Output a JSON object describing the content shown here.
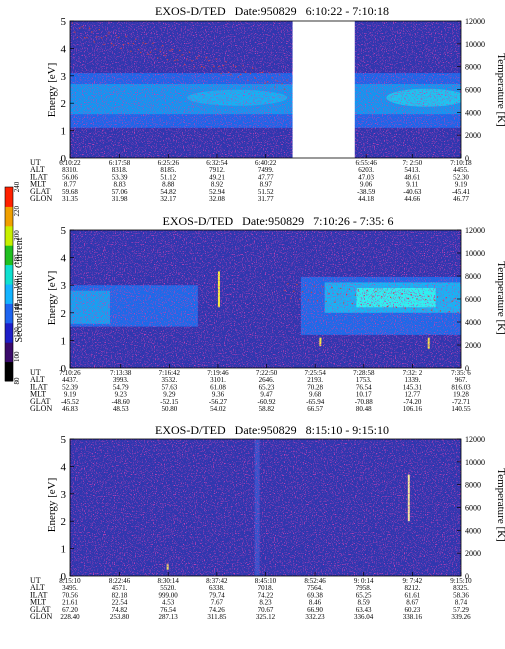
{
  "colorbar": {
    "label": "Second Harmonic Current",
    "ticks": [
      "80",
      "100",
      "120",
      "140",
      "160",
      "180",
      "200",
      "220",
      "240"
    ],
    "colors": [
      "#000000",
      "#3a0a6a",
      "#1e1ec8",
      "#1e64f0",
      "#14b4ff",
      "#10e0d0",
      "#20c020",
      "#c8f000",
      "#f0a000",
      "#ff2000"
    ]
  },
  "ephemeris_labels": [
    "UT",
    "ALT",
    "ILAT",
    "MLT",
    "GLAT",
    "GLON"
  ],
  "chart_data": [
    {
      "type": "heatmap",
      "title": "EXOS-D/TED   Date:950829   6:10:22 - 7:10:18",
      "ylabel": "Energy [eV]",
      "y2label": "Temperature [K]",
      "ylim": [
        0,
        5
      ],
      "y2lim": [
        0,
        12000
      ],
      "yticks": [
        "0",
        "1",
        "2",
        "3",
        "4",
        "5"
      ],
      "y2ticks": [
        "0",
        "2000",
        "4000",
        "6000",
        "8000",
        "10000",
        "12000"
      ],
      "data_gap": {
        "from": "6:44:30",
        "to": "6:54:00"
      },
      "ephemeris": [
        {
          "UT": "6:10:22",
          "ALT": "8310.",
          "ILAT": "56.06",
          "MLT": "8.77",
          "GLAT": "59.68",
          "GLON": "31.35"
        },
        {
          "UT": "6:17:58",
          "ALT": "8318.",
          "ILAT": "53.39",
          "MLT": "8.83",
          "GLAT": "57.06",
          "GLON": "31.98"
        },
        {
          "UT": "6:25:26",
          "ALT": "8185.",
          "ILAT": "51.12",
          "MLT": "8.88",
          "GLAT": "54.82",
          "GLON": "32.17"
        },
        {
          "UT": "6:32:54",
          "ALT": "7912.",
          "ILAT": "49.21",
          "MLT": "8.92",
          "GLAT": "52.94",
          "GLON": "32.08"
        },
        {
          "UT": "6:40:22",
          "ALT": "7499.",
          "ILAT": "47.77",
          "MLT": "8.97",
          "GLAT": "51.52",
          "GLON": "31.77"
        },
        {
          "UT": "6:55:46",
          "ALT": "6203.",
          "ILAT": "47.03",
          "MLT": "9.06",
          "GLAT": "-38.59",
          "GLON": "44.18"
        },
        {
          "UT": "7: 2:50",
          "ALT": "5413.",
          "ILAT": "48.61",
          "MLT": "9.11",
          "GLAT": "-40.63",
          "GLON": "44.66"
        },
        {
          "UT": "7:10:18",
          "ALT": "4455.",
          "ILAT": "52.30",
          "MLT": "9.19",
          "GLAT": "-45.41",
          "GLON": "46.77"
        }
      ]
    },
    {
      "type": "heatmap",
      "title": "EXOS-D/TED   Date:950829   7:10:26 - 7:35: 6",
      "ylabel": "Energy [eV]",
      "y2label": "Temperature [K]",
      "ylim": [
        0,
        5
      ],
      "y2lim": [
        0,
        12000
      ],
      "yticks": [
        "0",
        "1",
        "2",
        "3",
        "4",
        "5"
      ],
      "y2ticks": [
        "0",
        "2000",
        "4000",
        "6000",
        "8000",
        "10000",
        "12000"
      ],
      "ephemeris": [
        {
          "UT": "7:10:26",
          "ALT": "4437.",
          "ILAT": "52.39",
          "MLT": "9.19",
          "GLAT": "-45.52",
          "GLON": "46.83"
        },
        {
          "UT": "7:13:38",
          "ALT": "3993.",
          "ILAT": "54.79",
          "MLT": "9.23",
          "GLAT": "-48.60",
          "GLON": "48.53"
        },
        {
          "UT": "7:16:42",
          "ALT": "3532.",
          "ILAT": "57.63",
          "MLT": "9.29",
          "GLAT": "-52.15",
          "GLON": "50.80"
        },
        {
          "UT": "7:19:46",
          "ALT": "3101.",
          "ILAT": "61.08",
          "MLT": "9.36",
          "GLAT": "-56.27",
          "GLON": "54.02"
        },
        {
          "UT": "7:22:50",
          "ALT": "2646.",
          "ILAT": "65.23",
          "MLT": "9.47",
          "GLAT": "-60.92",
          "GLON": "58.82"
        },
        {
          "UT": "7:25:54",
          "ALT": "2193.",
          "ILAT": "70.28",
          "MLT": "9.68",
          "GLAT": "-65.94",
          "GLON": "66.57"
        },
        {
          "UT": "7:28:58",
          "ALT": "1753.",
          "ILAT": "76.54",
          "MLT": "10.17",
          "GLAT": "-70.88",
          "GLON": "80.48"
        },
        {
          "UT": "7:32: 2",
          "ALT": "1339.",
          "ILAT": "145.31",
          "MLT": "12.77",
          "GLAT": "-74.20",
          "GLON": "106.16"
        },
        {
          "UT": "7:35: 6",
          "ALT": "967.",
          "ILAT": "816.03",
          "MLT": "19.28",
          "GLAT": "-72.71",
          "GLON": "140.55"
        }
      ]
    },
    {
      "type": "heatmap",
      "title": "EXOS-D/TED   Date:950829   8:15:10 - 9:15:10",
      "ylabel": "Energy [eV]",
      "y2label": "Temperature [K]",
      "ylim": [
        0,
        5
      ],
      "y2lim": [
        0,
        12000
      ],
      "yticks": [
        "0",
        "1",
        "2",
        "3",
        "4",
        "5"
      ],
      "y2ticks": [
        "0",
        "2000",
        "4000",
        "6000",
        "8000",
        "10000",
        "12000"
      ],
      "ephemeris": [
        {
          "UT": "8:15:10",
          "ALT": "3495.",
          "ILAT": "70.56",
          "MLT": "21.61",
          "GLAT": "67.20",
          "GLON": "228.40"
        },
        {
          "UT": "8:22:46",
          "ALT": "4571.",
          "ILAT": "82.18",
          "MLT": "22.54",
          "GLAT": "74.82",
          "GLON": "253.80"
        },
        {
          "UT": "8:30:14",
          "ALT": "5520.",
          "ILAT": "999.00",
          "MLT": "4.53",
          "GLAT": "76.54",
          "GLON": "287.13"
        },
        {
          "UT": "8:37:42",
          "ALT": "6338.",
          "ILAT": "79.74",
          "MLT": "7.67",
          "GLAT": "74.26",
          "GLON": "311.85"
        },
        {
          "UT": "8:45:10",
          "ALT": "7018.",
          "ILAT": "74.22",
          "MLT": "8.23",
          "GLAT": "70.67",
          "GLON": "325.12"
        },
        {
          "UT": "8:52:46",
          "ALT": "7564.",
          "ILAT": "69.38",
          "MLT": "8.46",
          "GLAT": "66.90",
          "GLON": "332.23"
        },
        {
          "UT": "9: 0:14",
          "ALT": "7958.",
          "ILAT": "65.25",
          "MLT": "8.59",
          "GLAT": "63.43",
          "GLON": "336.04"
        },
        {
          "UT": "9: 7:42",
          "ALT": "8212.",
          "ILAT": "61.61",
          "MLT": "8.67",
          "GLAT": "60.23",
          "GLON": "338.16"
        },
        {
          "UT": "9:15:10",
          "ALT": "8325.",
          "ILAT": "58.36",
          "MLT": "8.74",
          "GLAT": "57.29",
          "GLON": "339.26"
        }
      ]
    }
  ]
}
